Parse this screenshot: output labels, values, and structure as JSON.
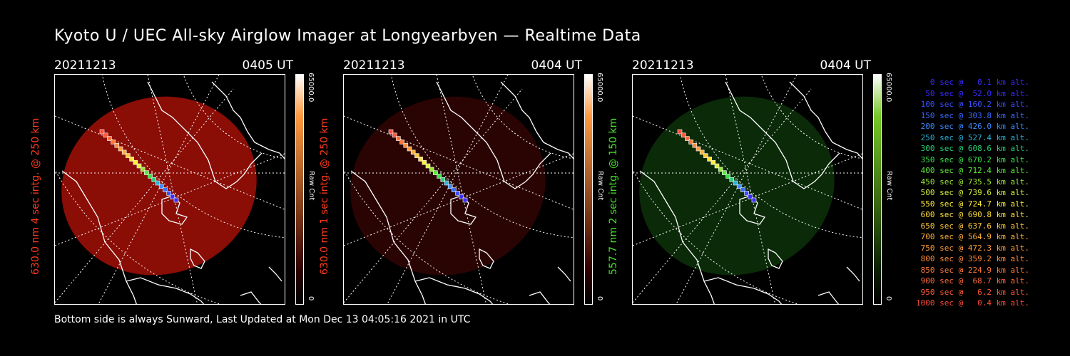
{
  "title": "Kyoto U / UEC All-sky Airglow Imager at Longyearbyen — Realtime Data",
  "footer": "Bottom side is always Sunward, Last Updated at Mon Dec 13 04:05:16 2021 in UTC",
  "colorbar": {
    "max": "65000.0",
    "min": "0",
    "unit": "Raw Cnt"
  },
  "panels": [
    {
      "date": "20211213",
      "time": "0405 UT",
      "label": "630.0 nm 4 sec intg. @ 250 km",
      "label_color": "#ff3a1e",
      "fill_color": "#8a0d06",
      "bar_top": "#ff9a40",
      "bar_bottom": "#300000"
    },
    {
      "date": "20211213",
      "time": "0404 UT",
      "label": "630.0 nm 1 sec intg. @ 250 km",
      "label_color": "#ff3a1e",
      "fill_color": "#2a0403",
      "bar_top": "#ff9a40",
      "bar_bottom": "#300000"
    },
    {
      "date": "20211213",
      "time": "0404 UT",
      "label": "557.7 nm 2 sec intg. @ 150 km",
      "label_color": "#47e02a",
      "fill_color": "#0a2a08",
      "bar_top": "#78c828",
      "bar_bottom": "#0a2000"
    }
  ],
  "legend": [
    {
      "text": "  0 sec @   0.1 km alt.",
      "color": "#3a2cff"
    },
    {
      "text": " 50 sec @  52.0 km alt.",
      "color": "#3a2cff"
    },
    {
      "text": "100 sec @ 160.2 km alt.",
      "color": "#3a50ff"
    },
    {
      "text": "150 sec @ 303.8 km alt.",
      "color": "#3a6aff"
    },
    {
      "text": "200 sec @ 426.0 km alt.",
      "color": "#3a8aff"
    },
    {
      "text": "250 sec @ 527.4 km alt.",
      "color": "#2cb0d8"
    },
    {
      "text": "300 sec @ 608.6 km alt.",
      "color": "#2ad07a"
    },
    {
      "text": "350 sec @ 670.2 km alt.",
      "color": "#3ae04a"
    },
    {
      "text": "400 sec @ 712.4 km alt.",
      "color": "#5ae83a"
    },
    {
      "text": "450 sec @ 735.5 km alt.",
      "color": "#9ae83a"
    },
    {
      "text": "500 sec @ 739.6 km alt.",
      "color": "#d8f03a"
    },
    {
      "text": "550 sec @ 724.7 km alt.",
      "color": "#fff03a"
    },
    {
      "text": "600 sec @ 690.8 km alt.",
      "color": "#ffe03a"
    },
    {
      "text": "650 sec @ 637.6 km alt.",
      "color": "#ffc83a"
    },
    {
      "text": "700 sec @ 564.9 km alt.",
      "color": "#ffb03a"
    },
    {
      "text": "750 sec @ 472.3 km alt.",
      "color": "#ff9a3a"
    },
    {
      "text": "800 sec @ 359.2 km alt.",
      "color": "#ff8a3a"
    },
    {
      "text": "850 sec @ 224.9 km alt.",
      "color": "#ff7a3a"
    },
    {
      "text": "900 sec @  68.7 km alt.",
      "color": "#ff6a3a"
    },
    {
      "text": "950 sec @   6.2 km alt.",
      "color": "#ff5a3a"
    },
    {
      "text": "1000 sec @   0.4 km alt.",
      "color": "#ff4a3a"
    }
  ]
}
